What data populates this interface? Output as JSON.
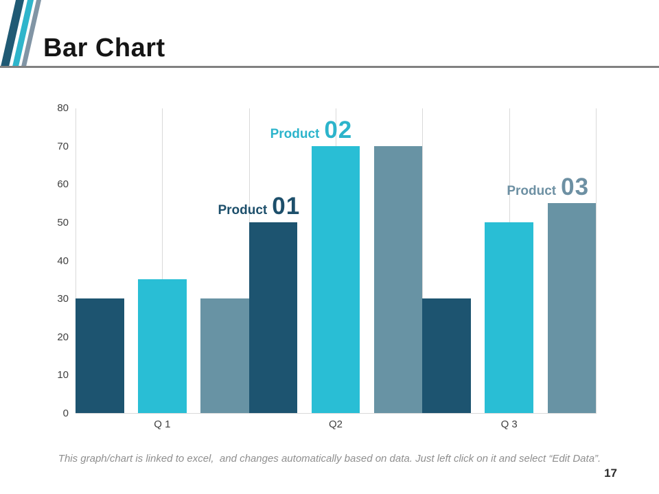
{
  "slide": {
    "title": "Bar Chart",
    "page_number": "17",
    "caption": "This graph/chart is linked to excel,  and changes automatically based on data. Just left click on it and select “Edit Data”."
  },
  "decor": {
    "stripe_colors": [
      "#205a74",
      "#2fb5cb",
      "#8195a5"
    ],
    "rule_color": "#808080",
    "gridline_color": "#d9d9d9"
  },
  "chart_data": {
    "type": "bar",
    "title": "",
    "categories": [
      "Q 1",
      "Q2",
      "Q 3"
    ],
    "series": [
      {
        "name": "Product 01",
        "color": "#1d5470",
        "values": [
          30,
          50,
          30
        ]
      },
      {
        "name": "Product 02",
        "color": "#29bed5",
        "values": [
          35,
          70,
          50
        ]
      },
      {
        "name": "Product 03",
        "color": "#6893a4",
        "values": [
          30,
          70,
          55
        ]
      }
    ],
    "ylim": [
      0,
      80
    ],
    "yticks": [
      0,
      10,
      20,
      30,
      40,
      50,
      60,
      70,
      80
    ],
    "grid": "vertical",
    "legend": "none",
    "annotations": [
      {
        "prefix": "Product",
        "number": "01",
        "series": 0,
        "category": 1,
        "color": "#1d4f6b"
      },
      {
        "prefix": "Product",
        "number": "02",
        "series": 1,
        "category": 1,
        "color": "#2cb4cb"
      },
      {
        "prefix": "Product",
        "number": "03",
        "series": 2,
        "category": 2,
        "color": "#6d90a3"
      }
    ]
  }
}
